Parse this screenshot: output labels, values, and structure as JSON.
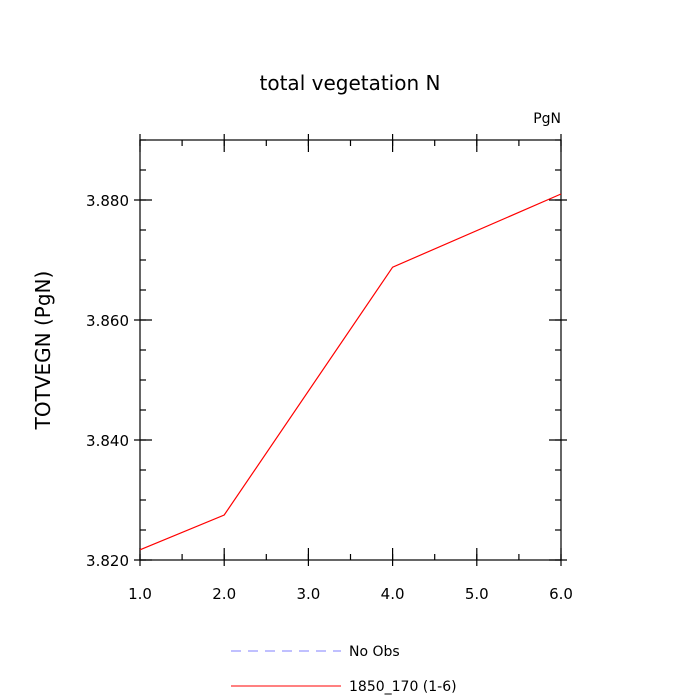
{
  "chart_data": {
    "type": "line",
    "title": "total vegetation N",
    "units_label": "PgN",
    "ylabel": "TOTVEGN  (PgN)",
    "xlabel": "",
    "xlim": [
      1.0,
      6.0
    ],
    "ylim": [
      3.82,
      3.89
    ],
    "x_ticks": [
      1.0,
      2.0,
      3.0,
      4.0,
      5.0,
      6.0
    ],
    "x_tick_labels": [
      "1.0",
      "2.0",
      "3.0",
      "4.0",
      "5.0",
      "6.0"
    ],
    "y_ticks": [
      3.82,
      3.84,
      3.86,
      3.88
    ],
    "y_tick_labels": [
      "3.820",
      "3.840",
      "3.860",
      "3.880"
    ],
    "y_minor_step": 0.005,
    "x_minor_step": 0.5,
    "grid": false,
    "legend_position": "bottom",
    "series": [
      {
        "name": "1850_170 (1-6)",
        "color": "#ff0000",
        "style": "solid",
        "x": [
          1.0,
          2.0,
          4.0,
          6.0
        ],
        "y": [
          3.8217,
          3.8275,
          3.8688,
          3.881
        ]
      }
    ],
    "legend": [
      {
        "label": "No Obs",
        "color": "#8080ff",
        "style": "dashed"
      },
      {
        "label": "1850_170 (1-6)",
        "color": "#ff0000",
        "style": "solid"
      }
    ]
  }
}
